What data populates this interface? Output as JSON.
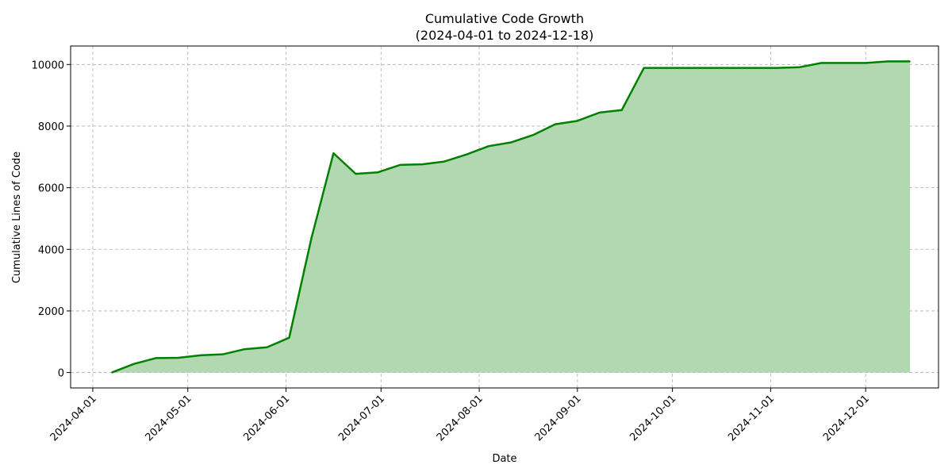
{
  "chart_data": {
    "type": "area",
    "title": "Cumulative Code Growth",
    "subtitle": "(2024-04-01 to 2024-12-18)",
    "xlabel": "Date",
    "ylabel": "Cumulative Lines of Code",
    "xlim": [
      "2024-03-25",
      "2024-12-24"
    ],
    "ylim": [
      -500,
      10600
    ],
    "grid": true,
    "colors": {
      "line": "#008000",
      "fill": "#b2d8b2",
      "grid": "#b0b0b0"
    },
    "x_ticks": [
      "2024-04-01",
      "2024-05-01",
      "2024-06-01",
      "2024-07-01",
      "2024-08-01",
      "2024-09-01",
      "2024-10-01",
      "2024-11-01",
      "2024-12-01"
    ],
    "y_ticks": [
      0,
      2000,
      4000,
      6000,
      8000,
      10000
    ],
    "x": [
      "2024-04-07",
      "2024-04-14",
      "2024-04-21",
      "2024-04-28",
      "2024-05-05",
      "2024-05-12",
      "2024-05-19",
      "2024-05-26",
      "2024-06-02",
      "2024-06-09",
      "2024-06-16",
      "2024-06-23",
      "2024-06-30",
      "2024-07-07",
      "2024-07-14",
      "2024-07-21",
      "2024-07-28",
      "2024-08-04",
      "2024-08-11",
      "2024-08-18",
      "2024-08-25",
      "2024-09-01",
      "2024-09-08",
      "2024-09-15",
      "2024-09-22",
      "2024-09-29",
      "2024-10-06",
      "2024-10-13",
      "2024-10-20",
      "2024-10-27",
      "2024-11-03",
      "2024-11-10",
      "2024-11-17",
      "2024-11-24",
      "2024-12-01",
      "2024-12-08",
      "2024-12-15"
    ],
    "values": [
      0,
      280,
      470,
      480,
      560,
      590,
      760,
      820,
      1130,
      4350,
      7120,
      6450,
      6500,
      6740,
      6760,
      6850,
      7080,
      7350,
      7470,
      7710,
      8060,
      8170,
      8440,
      8520,
      9890,
      9890,
      9890,
      9890,
      9890,
      9890,
      9890,
      9910,
      10050,
      10050,
      10050,
      10100,
      10100
    ]
  }
}
